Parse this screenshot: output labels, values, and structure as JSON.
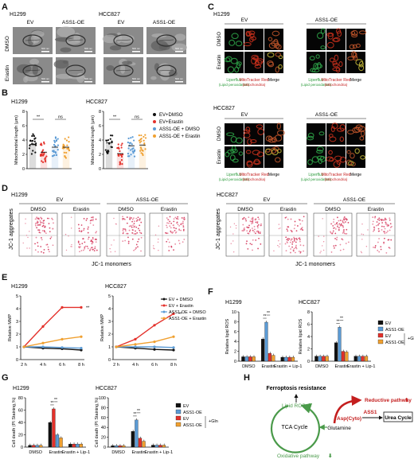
{
  "panel_letters": [
    "A",
    "B",
    "C",
    "D",
    "E",
    "F",
    "G",
    "H"
  ],
  "cells": {
    "h1299": "H1299",
    "hcc827": "HCC827"
  },
  "groups": {
    "ev": "EV",
    "oe": "ASS1-OE"
  },
  "treat": {
    "dmso": "DMSO",
    "erastin": "Erastin",
    "lip": "Erastin + Lip-1"
  },
  "tem_scale": "500 nm",
  "c_labels": {
    "liperfluo": "Liperfluo",
    "liperfluo_sub": "(Lipid peroxidation)",
    "mito": "MitoTracker Red",
    "mito_sub": "(Mitochondria)",
    "merge": "Merge"
  },
  "d_labels": {
    "ylabel": "JC-1 aggregates",
    "xlabel": "JC-1 monomers"
  },
  "f_gln": "+Gln",
  "sig": {
    "ss": "**",
    "ns": "ns"
  },
  "chart_data": [
    {
      "id": "B1",
      "type": "scatter",
      "title": "H1299",
      "ylabel": "Mitochondrial length (μm)",
      "ylim": [
        0,
        8
      ],
      "yticks": [
        0,
        2,
        4,
        6,
        8
      ],
      "series": [
        {
          "name": "EV+DMSO",
          "mean": 3.4
        },
        {
          "name": "EV+Erastin",
          "mean": 2.3
        },
        {
          "name": "ASS1-OE + DMSO",
          "mean": 3.0
        },
        {
          "name": "ASS1-OE + Erastin",
          "mean": 3.0
        }
      ],
      "colors": [
        "#111111",
        "#e4312b",
        "#5b9bd5",
        "#f0a030"
      ]
    },
    {
      "id": "B2",
      "type": "scatter",
      "title": "HCC827",
      "ylabel": "Mitochondrial length (μm)",
      "ylim": [
        0,
        8
      ],
      "yticks": [
        0,
        2,
        4,
        6,
        8
      ],
      "series": [
        {
          "name": "EV+DMSO",
          "mean": 3.6
        },
        {
          "name": "EV+Erastin",
          "mean": 2.1
        },
        {
          "name": "ASS1-OE + DMSO",
          "mean": 3.2
        },
        {
          "name": "ASS1-OE + Erastin",
          "mean": 3.3
        }
      ],
      "legend": [
        "EV+DMSO",
        "EV+Erastin",
        "ASS1-OE + DMSO",
        "ASS1-OE + Erastin"
      ],
      "colors": [
        "#111111",
        "#e4312b",
        "#5b9bd5",
        "#f0a030"
      ]
    },
    {
      "id": "E1",
      "type": "line",
      "title": "H1299",
      "ylabel": "Relative MMP",
      "ylim": [
        0,
        5
      ],
      "yticks": [
        0,
        1,
        2,
        3,
        4,
        5
      ],
      "x": [
        "2 h",
        "4 h",
        "6 h",
        "8 h"
      ],
      "series": [
        {
          "name": "EV + DMSO",
          "values": [
            1.0,
            0.9,
            0.85,
            0.75
          ]
        },
        {
          "name": "EV + Erastin",
          "values": [
            1.0,
            2.6,
            4.1,
            4.1
          ]
        },
        {
          "name": "ASS1-OE + DMSO",
          "values": [
            1.0,
            1.0,
            0.95,
            0.9
          ]
        },
        {
          "name": "ASS1-OE + Erastin",
          "values": [
            1.0,
            1.3,
            1.6,
            1.8
          ]
        }
      ],
      "colors": [
        "#111111",
        "#e4312b",
        "#5b9bd5",
        "#f0a030"
      ]
    },
    {
      "id": "E2",
      "type": "line",
      "title": "HCC827",
      "ylabel": "Relative MMP",
      "ylim": [
        0,
        5
      ],
      "yticks": [
        0,
        1,
        2,
        3,
        4,
        5
      ],
      "x": [
        "2 h",
        "4 h",
        "6 h",
        "8 h"
      ],
      "series": [
        {
          "name": "EV + DMSO",
          "values": [
            1.0,
            0.9,
            0.8,
            0.75
          ]
        },
        {
          "name": "EV + Erastin",
          "values": [
            1.0,
            1.6,
            2.7,
            3.6
          ]
        },
        {
          "name": "ASS1-OE + DMSO",
          "values": [
            1.0,
            1.0,
            1.0,
            0.95
          ]
        },
        {
          "name": "ASS1-OE + Erastin",
          "values": [
            1.0,
            1.2,
            1.4,
            1.8
          ]
        }
      ],
      "legend": [
        "EV + DMSO",
        "EV + Erastin",
        "ASS1-OE + DMSO",
        "ASS1-OE + Erastin"
      ],
      "colors": [
        "#111111",
        "#e4312b",
        "#5b9bd5",
        "#f0a030"
      ]
    },
    {
      "id": "F1",
      "type": "bar",
      "title": "H1299",
      "ylabel": "Relative lipid ROS",
      "ylim": [
        0,
        10
      ],
      "yticks": [
        0,
        2,
        4,
        6,
        8,
        10
      ],
      "categories": [
        "DMSO",
        "Erastin",
        "Erastin + Lip-1"
      ],
      "series": [
        {
          "name": "EV",
          "values": [
            0.9,
            4.5,
            0.8
          ]
        },
        {
          "name": "ASS1-OE",
          "values": [
            0.9,
            7.9,
            0.8
          ]
        },
        {
          "name": "EV",
          "values": [
            0.9,
            1.6,
            0.8
          ]
        },
        {
          "name": "ASS1-OE",
          "values": [
            0.9,
            1.2,
            0.8
          ]
        }
      ],
      "colors": [
        "#111111",
        "#5b9bd5",
        "#e4312b",
        "#f0a030"
      ]
    },
    {
      "id": "F2",
      "type": "bar",
      "title": "HCC827",
      "ylabel": "Relative lipid ROS",
      "ylim": [
        0,
        8
      ],
      "yticks": [
        0,
        2,
        4,
        6,
        8
      ],
      "categories": [
        "DMSO",
        "Erastin",
        "Erastin + Lip-1"
      ],
      "series": [
        {
          "name": "EV",
          "values": [
            0.8,
            3.0,
            0.8
          ]
        },
        {
          "name": "ASS1-OE",
          "values": [
            0.8,
            5.5,
            0.8
          ]
        },
        {
          "name": "EV",
          "values": [
            0.8,
            1.6,
            0.8
          ]
        },
        {
          "name": "ASS1-OE",
          "values": [
            0.8,
            1.5,
            0.8
          ]
        }
      ],
      "legend": [
        "EV",
        "ASS1-OE",
        "EV",
        "ASS1-OE"
      ],
      "colors": [
        "#111111",
        "#5b9bd5",
        "#e4312b",
        "#f0a030"
      ]
    },
    {
      "id": "G1",
      "type": "bar",
      "title": "H1299",
      "ylabel": "Cell death (PI Staining,%)",
      "ylim": [
        0,
        80
      ],
      "yticks": [
        0,
        20,
        40,
        60,
        80
      ],
      "categories": [
        "DMSO",
        "Erastin",
        "Erastin + Lip-1"
      ],
      "series": [
        {
          "name": "EV",
          "values": [
            3,
            40,
            5
          ]
        },
        {
          "name": "ASS1-OE",
          "values": [
            3,
            62,
            5
          ]
        },
        {
          "name": "EV",
          "values": [
            3,
            20,
            5
          ]
        },
        {
          "name": "ASS1-OE",
          "values": [
            3,
            15,
            5
          ]
        }
      ],
      "colors": [
        "#111111",
        "#e4312b",
        "#5b9bd5",
        "#f0a030"
      ]
    },
    {
      "id": "G2",
      "type": "bar",
      "title": "HCC827",
      "ylabel": "Cell death (PI Staining,%)",
      "ylim": [
        0,
        100
      ],
      "yticks": [
        0,
        20,
        40,
        60,
        80,
        100
      ],
      "categories": [
        "DMSO",
        "Erastin",
        "Erastin + Lip-1"
      ],
      "series": [
        {
          "name": "EV",
          "values": [
            3,
            32,
            4
          ]
        },
        {
          "name": "ASS1-OE",
          "values": [
            3,
            55,
            4
          ]
        },
        {
          "name": "EV",
          "values": [
            3,
            18,
            4
          ]
        },
        {
          "name": "ASS1-OE",
          "values": [
            3,
            12,
            4
          ]
        }
      ],
      "legend": [
        "EV",
        "ASS1-OE",
        "EV",
        "ASS1-OE"
      ],
      "colors": [
        "#111111",
        "#5b9bd5",
        "#e4312b",
        "#f0a030"
      ]
    }
  ],
  "diagram_h": {
    "resistance": "Ferroptosis resistance",
    "lipid_ros": "Lipid ROS",
    "tca": "TCA Cycle",
    "glutamine": "Glutamine",
    "oxidative": "Oxidative pathway",
    "reductive": "Reductive pathway",
    "asp": "Asp(Cyto)",
    "ass1": "ASS1",
    "urea": "Urea Cycle"
  }
}
